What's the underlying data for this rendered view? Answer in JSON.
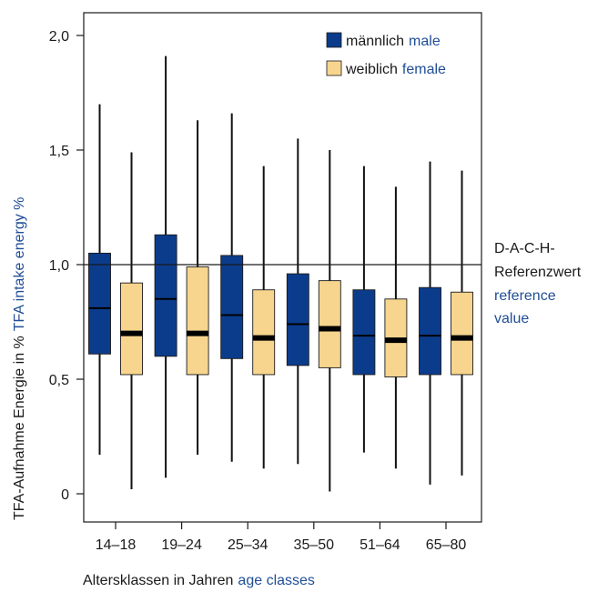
{
  "chart_data": {
    "type": "boxplot",
    "categories": [
      "14–18",
      "19–24",
      "25–34",
      "35–50",
      "51–64",
      "65–80"
    ],
    "series": [
      {
        "name": "männlich male",
        "color": "#0b3c8c",
        "boxes": [
          {
            "min": 0.17,
            "q1": 0.61,
            "median": 0.81,
            "q3": 1.05,
            "max": 1.7
          },
          {
            "min": 0.07,
            "q1": 0.6,
            "median": 0.85,
            "q3": 1.13,
            "max": 1.91
          },
          {
            "min": 0.14,
            "q1": 0.59,
            "median": 0.78,
            "q3": 1.04,
            "max": 1.66
          },
          {
            "min": 0.13,
            "q1": 0.56,
            "median": 0.74,
            "q3": 0.96,
            "max": 1.55
          },
          {
            "min": 0.18,
            "q1": 0.52,
            "median": 0.69,
            "q3": 0.89,
            "max": 1.43
          },
          {
            "min": 0.04,
            "q1": 0.52,
            "median": 0.69,
            "q3": 0.9,
            "max": 1.45
          }
        ]
      },
      {
        "name": "weiblich female",
        "color": "#f7d58e",
        "boxes": [
          {
            "min": 0.02,
            "q1": 0.52,
            "median": 0.7,
            "q3": 0.92,
            "max": 1.49
          },
          {
            "min": 0.17,
            "q1": 0.52,
            "median": 0.7,
            "q3": 0.99,
            "max": 1.63
          },
          {
            "min": 0.11,
            "q1": 0.52,
            "median": 0.68,
            "q3": 0.89,
            "max": 1.43
          },
          {
            "min": 0.01,
            "q1": 0.55,
            "median": 0.72,
            "q3": 0.93,
            "max": 1.5
          },
          {
            "min": 0.11,
            "q1": 0.51,
            "median": 0.67,
            "q3": 0.85,
            "max": 1.34
          },
          {
            "min": 0.08,
            "q1": 0.52,
            "median": 0.68,
            "q3": 0.88,
            "max": 1.41
          }
        ]
      }
    ],
    "y_ticks": [
      {
        "value": 0,
        "label": "0"
      },
      {
        "value": 0.5,
        "label": "0,5"
      },
      {
        "value": 1.0,
        "label": "1,0"
      },
      {
        "value": 1.5,
        "label": "1,5"
      },
      {
        "value": 2.0,
        "label": "2,0"
      }
    ],
    "ylim": [
      -0.1,
      2.1
    ],
    "reference_line": {
      "value": 1.0,
      "label_lines": [
        "D-A-C-H-",
        "Referenzwert"
      ],
      "label_en_lines": [
        "reference",
        "value"
      ]
    },
    "ylabel": {
      "de": "TFA-Aufnahme Energie in %",
      "en": "TFA intake energy %"
    },
    "xlabel": {
      "de": "Altersklassen in Jahren",
      "en": "age classes"
    },
    "legend": [
      {
        "de": "männlich",
        "en": "male",
        "color": "#0b3c8c"
      },
      {
        "de": "weiblich",
        "en": "female",
        "color": "#f7d58e"
      }
    ],
    "legend_position": "top-right",
    "colors": {
      "text_blue": "#1f4e96",
      "axis": "#1a1a1a"
    }
  }
}
